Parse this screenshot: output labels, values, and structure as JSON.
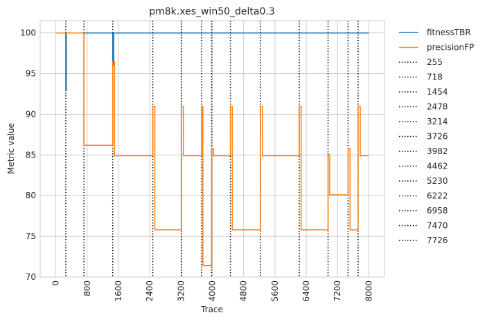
{
  "chart_data": {
    "type": "line",
    "title": "pm8k.xes_win50_delta0.3",
    "xlabel": "Trace",
    "ylabel": "Metric value",
    "xlim": [
      -400,
      8400
    ],
    "ylim": [
      70,
      101.5
    ],
    "grid": true,
    "x_ticks": [
      0,
      800,
      1600,
      2400,
      3200,
      4000,
      4800,
      5600,
      6400,
      7200,
      8000
    ],
    "x_tick_labels": [
      "0",
      "800",
      "1600",
      "2400",
      "3200",
      "4000",
      "4800",
      "5600",
      "6400",
      "7200",
      "8000"
    ],
    "y_ticks": [
      70,
      75,
      80,
      85,
      90,
      95,
      100
    ],
    "y_tick_labels": [
      "70",
      "75",
      "80",
      "85",
      "90",
      "95",
      "100"
    ],
    "legend_position": "outside-right",
    "series": [
      {
        "name": "fitnessTBR",
        "color": "#1f77b4",
        "points": [
          [
            0,
            100
          ],
          [
            255,
            100
          ],
          [
            255,
            92.9
          ],
          [
            270,
            92.9
          ],
          [
            270,
            100
          ],
          [
            1454,
            100
          ],
          [
            1454,
            96
          ],
          [
            1480,
            96
          ],
          [
            1480,
            100
          ],
          [
            8000,
            100
          ]
        ]
      },
      {
        "name": "precisionFP",
        "color": "#ff7f0e",
        "points": [
          [
            0,
            100
          ],
          [
            718,
            100
          ],
          [
            718,
            86.2
          ],
          [
            1454,
            86.2
          ],
          [
            1454,
            96.5
          ],
          [
            1500,
            96.5
          ],
          [
            1500,
            84.9
          ],
          [
            2478,
            84.9
          ],
          [
            2478,
            91
          ],
          [
            2530,
            91
          ],
          [
            2530,
            75.8
          ],
          [
            3214,
            75.8
          ],
          [
            3214,
            91
          ],
          [
            3260,
            91
          ],
          [
            3260,
            84.9
          ],
          [
            3726,
            84.9
          ],
          [
            3726,
            91
          ],
          [
            3760,
            91
          ],
          [
            3760,
            71.4
          ],
          [
            3982,
            71.4
          ],
          [
            3982,
            85.8
          ],
          [
            4030,
            85.8
          ],
          [
            4030,
            84.9
          ],
          [
            4462,
            84.9
          ],
          [
            4462,
            91
          ],
          [
            4510,
            91
          ],
          [
            4510,
            75.8
          ],
          [
            5230,
            75.8
          ],
          [
            5230,
            91
          ],
          [
            5280,
            91
          ],
          [
            5280,
            84.9
          ],
          [
            6222,
            84.9
          ],
          [
            6222,
            91
          ],
          [
            6270,
            91
          ],
          [
            6270,
            75.8
          ],
          [
            6958,
            75.8
          ],
          [
            6958,
            85
          ],
          [
            7000,
            85
          ],
          [
            7000,
            80.1
          ],
          [
            7470,
            80.1
          ],
          [
            7470,
            85.8
          ],
          [
            7520,
            85.8
          ],
          [
            7520,
            75.8
          ],
          [
            7726,
            75.8
          ],
          [
            7726,
            91
          ],
          [
            7780,
            91
          ],
          [
            7780,
            84.9
          ],
          [
            8000,
            84.9
          ]
        ]
      }
    ],
    "vlines": [
      {
        "label": "255",
        "x": 255
      },
      {
        "label": "718",
        "x": 718
      },
      {
        "label": "1454",
        "x": 1454
      },
      {
        "label": "2478",
        "x": 2478
      },
      {
        "label": "3214",
        "x": 3214
      },
      {
        "label": "3726",
        "x": 3726
      },
      {
        "label": "3982",
        "x": 3982
      },
      {
        "label": "4462",
        "x": 4462
      },
      {
        "label": "5230",
        "x": 5230
      },
      {
        "label": "6222",
        "x": 6222
      },
      {
        "label": "6958",
        "x": 6958
      },
      {
        "label": "7470",
        "x": 7470
      },
      {
        "label": "7726",
        "x": 7726
      }
    ],
    "vline_style": {
      "color": "#000000",
      "dash": "dotted"
    }
  }
}
